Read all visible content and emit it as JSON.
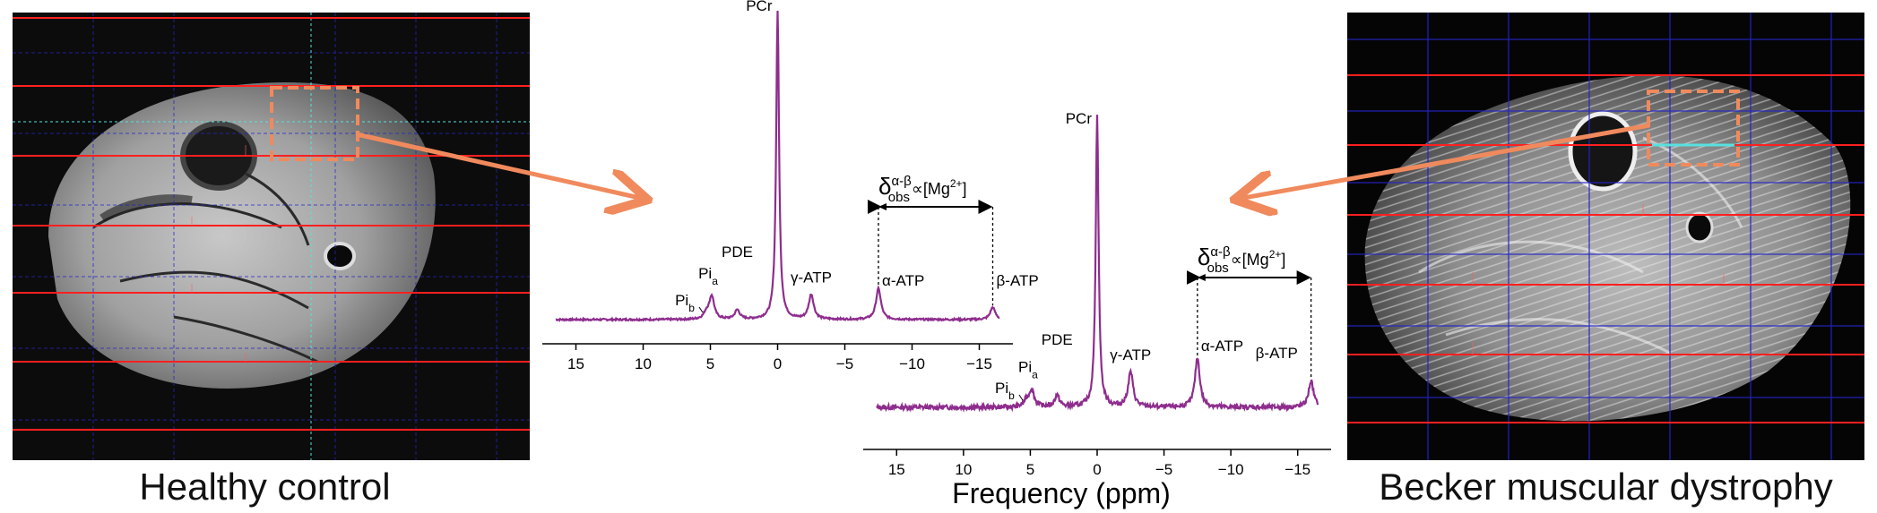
{
  "captions": {
    "left": "Healthy control",
    "right": "Becker muscular dystrophy"
  },
  "colors": {
    "spectrum": "#8e2d8e",
    "grid_red": "#ff2020",
    "grid_blue": "#2424c8",
    "voxel_box": "#f08a5d",
    "arrow": "#f08a5d",
    "cyan_line": "#58e0e0"
  },
  "chart_data": [
    {
      "type": "line",
      "name": "Healthy control spectrum",
      "xlabel": "",
      "xlim": [
        17.5,
        -17.5
      ],
      "xticks": [
        15,
        10,
        5,
        0,
        -5,
        -10,
        -15
      ],
      "xtick_labels": [
        "15",
        "10",
        "5",
        "0",
        "−5",
        "−10",
        "−15"
      ],
      "peaks": [
        {
          "label": "PCr",
          "ppm": 0,
          "height": 1.0
        },
        {
          "label": "Pi",
          "sub": "a",
          "ppm": 4.9,
          "height": 0.075
        },
        {
          "label": "Pi",
          "sub": "b",
          "ppm": 5.3,
          "height": 0.02
        },
        {
          "label": "PDE",
          "ppm": 3.0,
          "height": 0.03
        },
        {
          "label": "γ-ATP",
          "ppm": -2.5,
          "height": 0.08
        },
        {
          "label": "α-ATP",
          "ppm": -7.5,
          "height": 0.1
        },
        {
          "label": "β-ATP",
          "ppm": -16.0,
          "height": 0.04
        }
      ],
      "annotation": {
        "text": "δ",
        "sup": "α-β",
        "sub": "obs",
        "suffix": "∝[Mg",
        "ion_sup": "2+",
        "close": "]",
        "from_ppm": -7.5,
        "to_ppm": -16.0
      }
    },
    {
      "type": "line",
      "name": "Becker muscular dystrophy spectrum",
      "xlabel": "Frequency (ppm)",
      "xlim": [
        17.5,
        -17.5
      ],
      "xticks": [
        15,
        10,
        5,
        0,
        -5,
        -10,
        -15
      ],
      "xtick_labels": [
        "15",
        "10",
        "5",
        "0",
        "−5",
        "−10",
        "−15"
      ],
      "peaks": [
        {
          "label": "PCr",
          "ppm": 0,
          "height": 1.0
        },
        {
          "label": "Pi",
          "sub": "a",
          "ppm": 4.9,
          "height": 0.06
        },
        {
          "label": "Pi",
          "sub": "b",
          "ppm": 5.3,
          "height": 0.02
        },
        {
          "label": "PDE",
          "ppm": 3.0,
          "height": 0.04
        },
        {
          "label": "γ-ATP",
          "ppm": -2.5,
          "height": 0.12
        },
        {
          "label": "α-ATP",
          "ppm": -7.5,
          "height": 0.17
        },
        {
          "label": "β-ATP",
          "ppm": -16.0,
          "height": 0.09
        }
      ],
      "annotation": {
        "text": "δ",
        "sup": "α-β",
        "sub": "obs",
        "suffix": "∝[Mg",
        "ion_sup": "2+",
        "close": "]",
        "from_ppm": -7.5,
        "to_ppm": -16.0
      }
    }
  ]
}
